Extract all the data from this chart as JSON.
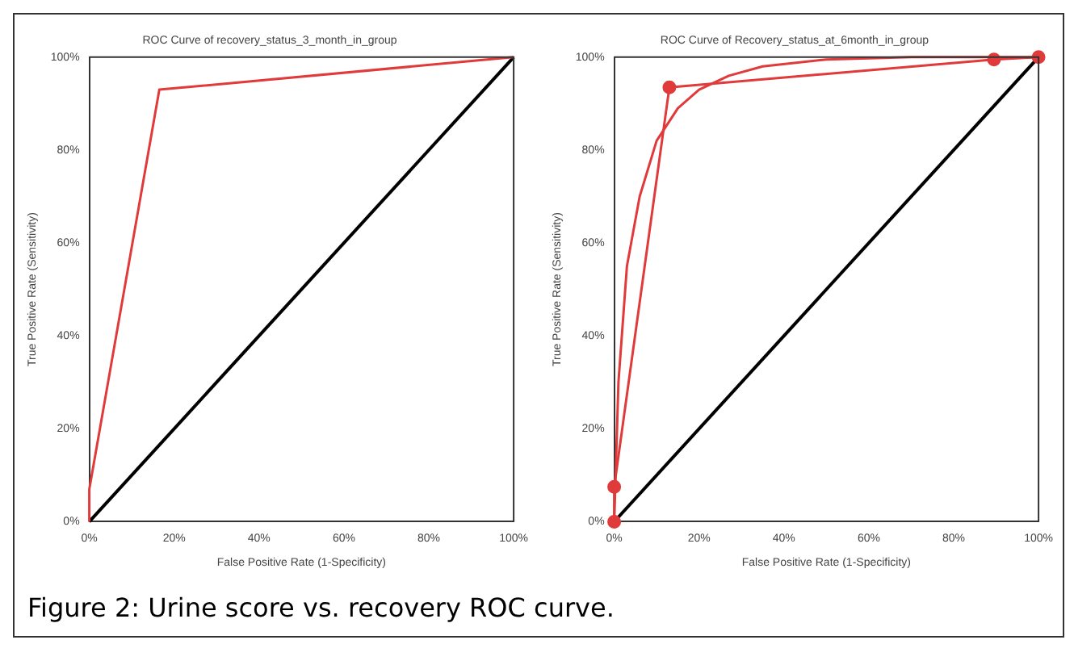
{
  "chart_data": [
    {
      "type": "line",
      "title": "ROC Curve of recovery_status_3_month_in_group",
      "xlabel": "False Positive Rate (1-Specificity)",
      "ylabel": "True Positive Rate (Sensitivity)",
      "xlim": [
        0,
        100
      ],
      "ylim": [
        0,
        100
      ],
      "xticks": [
        {
          "value": 0,
          "label": "0%"
        },
        {
          "value": 20,
          "label": "20%"
        },
        {
          "value": 40,
          "label": "40%"
        },
        {
          "value": 60,
          "label": "60%"
        },
        {
          "value": 80,
          "label": "80%"
        },
        {
          "value": 100,
          "label": "100%"
        }
      ],
      "yticks": [
        {
          "value": 0,
          "label": "0%"
        },
        {
          "value": 20,
          "label": "20%"
        },
        {
          "value": 40,
          "label": "40%"
        },
        {
          "value": 60,
          "label": "60%"
        },
        {
          "value": 80,
          "label": "80%"
        },
        {
          "value": 100,
          "label": "100%"
        }
      ],
      "grid": false,
      "legend": false,
      "marker": "none",
      "line_style": "solid",
      "series": [
        {
          "color": "#e03a3a",
          "x": [
            0,
            0,
            16.5,
            100
          ],
          "values": [
            0,
            7,
            93,
            100
          ]
        },
        {
          "color": "#000000",
          "x": [
            0,
            100
          ],
          "values": [
            0,
            100
          ]
        }
      ]
    },
    {
      "type": "line",
      "title": "ROC Curve of Recovery_status_at_6month_in_group",
      "xlabel": "False Positive Rate (1-Specificity)",
      "ylabel": "True Positive Rate (Sensitivity)",
      "xlim": [
        0,
        100
      ],
      "ylim": [
        0,
        100
      ],
      "xticks": [
        {
          "value": 0,
          "label": "0%"
        },
        {
          "value": 20,
          "label": "20%"
        },
        {
          "value": 40,
          "label": "40%"
        },
        {
          "value": 60,
          "label": "60%"
        },
        {
          "value": 80,
          "label": "80%"
        },
        {
          "value": 100,
          "label": "100%"
        }
      ],
      "yticks": [
        {
          "value": 0,
          "label": "0%"
        },
        {
          "value": 20,
          "label": "20%"
        },
        {
          "value": 40,
          "label": "40%"
        },
        {
          "value": 60,
          "label": "60%"
        },
        {
          "value": 80,
          "label": "80%"
        },
        {
          "value": 100,
          "label": "100%"
        }
      ],
      "grid": false,
      "legend": false,
      "marker": "none",
      "line_style": "solid",
      "annotations": [
        "Figure 2: Urine score vs. recovery ROC curve."
      ],
      "series": [
        {
          "color": "#e03a3a",
          "marker": "circle",
          "x": [
            0,
            0,
            13,
            89.5,
            100
          ],
          "values": [
            0,
            7.5,
            93.5,
            99.5,
            100
          ]
        },
        {
          "color": "#e03a3a",
          "x": [
            0,
            1,
            3,
            6,
            10,
            15,
            20,
            27,
            35,
            50,
            70,
            100
          ],
          "values": [
            0,
            30,
            55,
            70,
            82,
            89,
            93,
            96,
            98,
            99.5,
            100,
            100
          ]
        },
        {
          "color": "#000000",
          "x": [
            0,
            100
          ],
          "values": [
            0,
            100
          ]
        }
      ]
    }
  ]
}
